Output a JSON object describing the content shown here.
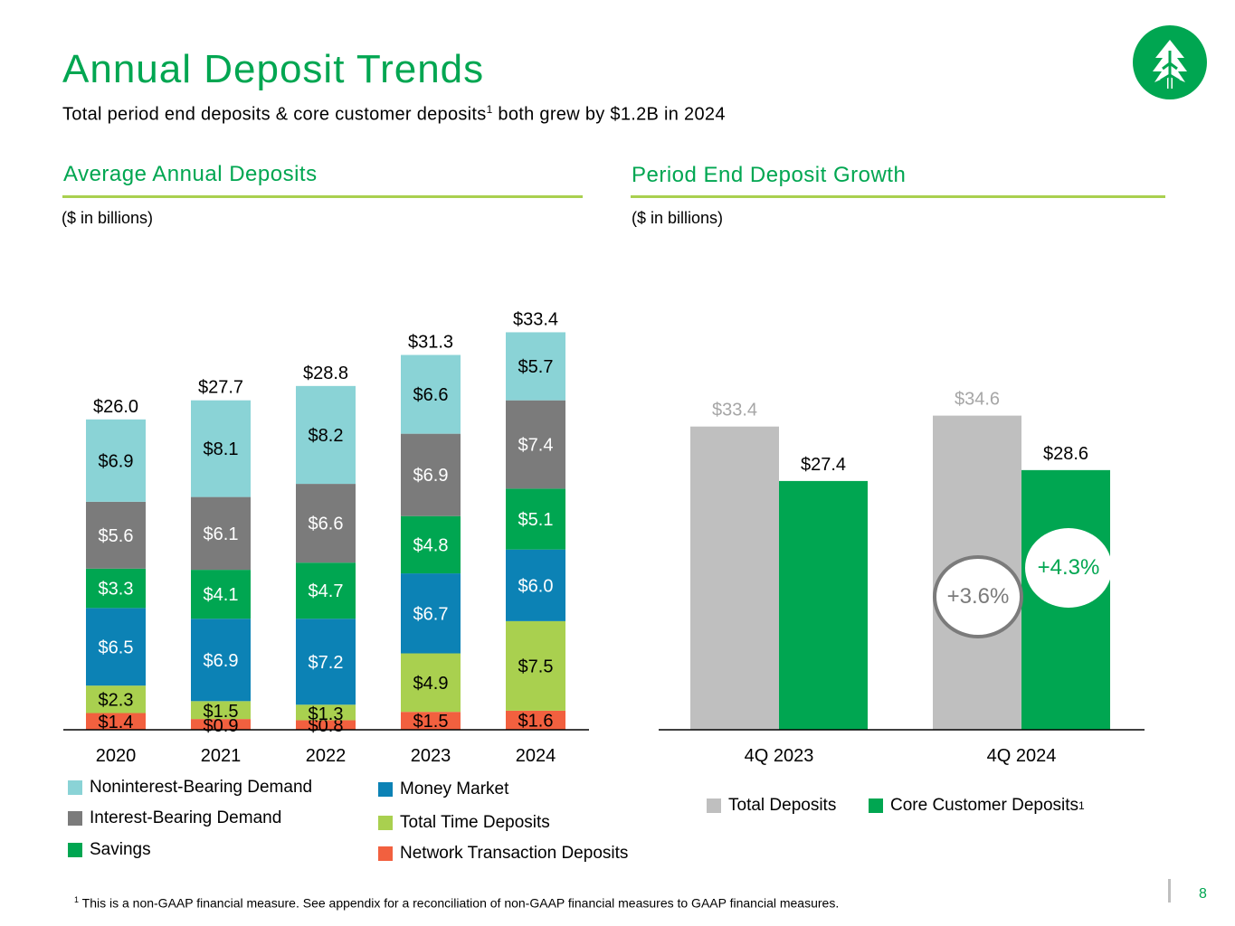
{
  "header": {
    "title": "Annual Deposit Trends",
    "subtitle_main": "Total period end deposits & core customer deposits",
    "subtitle_sup": "1",
    "subtitle_end": " both grew by $1.2B in 2024"
  },
  "left_section": {
    "title": "Average Annual Deposits",
    "units": "($ in billions)"
  },
  "right_section": {
    "title": "Period End Deposit Growth",
    "units": "($ in billions)"
  },
  "colors": {
    "accent_green": "#00a651",
    "rule_green": "#a9d04f",
    "nonint_demand": "#8ad3d6",
    "int_demand": "#7b7b7b",
    "savings": "#00a651",
    "money_market": "#0c82b5",
    "time_deposits": "#a9d04f",
    "network": "#f2603f",
    "total_deposits": "#bfbfbf",
    "core_deposits": "#00a651"
  },
  "chart_data": [
    {
      "type": "bar",
      "stacked": true,
      "categories": [
        "2020",
        "2021",
        "2022",
        "2023",
        "2024"
      ],
      "series": [
        {
          "name": "Network Transaction Deposits",
          "values": [
            1.4,
            0.9,
            0.8,
            1.5,
            1.6
          ],
          "labels": [
            "$1.4",
            "$0.9",
            "$0.8",
            "$1.5",
            "$1.6"
          ]
        },
        {
          "name": "Total Time Deposits",
          "values": [
            2.3,
            1.5,
            1.3,
            4.9,
            7.5
          ],
          "labels": [
            "$2.3",
            "$1.5",
            "$1.3",
            "$4.9",
            "$7.5"
          ]
        },
        {
          "name": "Money Market",
          "values": [
            6.5,
            6.9,
            7.2,
            6.7,
            6.0
          ],
          "labels": [
            "$6.5",
            "$6.9",
            "$7.2",
            "$6.7",
            "$6.0"
          ]
        },
        {
          "name": "Savings",
          "values": [
            3.3,
            4.1,
            4.7,
            4.8,
            5.1
          ],
          "labels": [
            "$3.3",
            "$4.1",
            "$4.7",
            "$4.8",
            "$5.1"
          ]
        },
        {
          "name": "Interest-Bearing Demand",
          "values": [
            5.6,
            6.1,
            6.6,
            6.9,
            7.4
          ],
          "labels": [
            "$5.6",
            "$6.1",
            "$6.6",
            "$6.9",
            "$7.4"
          ]
        },
        {
          "name": "Noninterest-Bearing Demand",
          "values": [
            6.9,
            8.1,
            8.2,
            6.6,
            5.7
          ],
          "labels": [
            "$6.9",
            "$8.1",
            "$8.2",
            "$6.6",
            "$5.7"
          ]
        }
      ],
      "totals": [
        26.0,
        27.7,
        28.8,
        31.3,
        33.4
      ],
      "total_labels": [
        "$26.0",
        "$27.7",
        "$28.8",
        "$31.3",
        "$33.4"
      ],
      "title": "Average Annual Deposits",
      "ylabel": "($ in billions)",
      "grid": false,
      "legend_position": "bottom",
      "legend": {
        "col1": [
          "Noninterest-Bearing Demand",
          "Interest-Bearing Demand",
          "Savings"
        ],
        "col2": [
          "Money Market",
          "Total Time Deposits",
          "Network Transaction Deposits"
        ]
      }
    },
    {
      "type": "bar",
      "categories": [
        "4Q 2023",
        "4Q 2024"
      ],
      "series": [
        {
          "name": "Total Deposits",
          "values": [
            33.4,
            34.6
          ],
          "labels": [
            "$33.4",
            "$34.6"
          ]
        },
        {
          "name": "Core Customer Deposits",
          "values": [
            27.4,
            28.6
          ],
          "labels": [
            "$27.4",
            "$28.6"
          ]
        }
      ],
      "legend_sup": "1",
      "growth": {
        "total_deposits": "+3.6%",
        "core_deposits": "+4.3%"
      },
      "title": "Period End Deposit Growth",
      "ylabel": "($ in billions)",
      "grid": false,
      "legend_position": "bottom"
    }
  ],
  "footnote": {
    "sup": "1",
    "text": " This is a non-GAAP financial measure. See appendix for a reconciliation of non-GAAP financial measures to GAAP financial measures."
  },
  "page_number": "8",
  "logo_icon": "tree-icon"
}
